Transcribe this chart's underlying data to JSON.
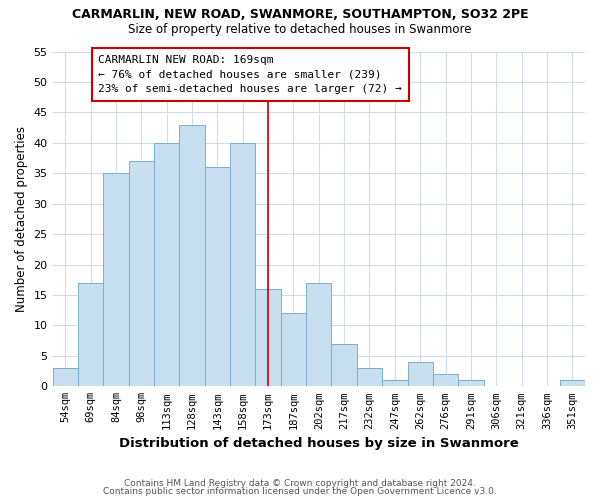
{
  "title1": "CARMARLIN, NEW ROAD, SWANMORE, SOUTHAMPTON, SO32 2PE",
  "title2": "Size of property relative to detached houses in Swanmore",
  "xlabel": "Distribution of detached houses by size in Swanmore",
  "ylabel": "Number of detached properties",
  "bin_labels": [
    "54sqm",
    "69sqm",
    "84sqm",
    "98sqm",
    "113sqm",
    "128sqm",
    "143sqm",
    "158sqm",
    "173sqm",
    "187sqm",
    "202sqm",
    "217sqm",
    "232sqm",
    "247sqm",
    "262sqm",
    "276sqm",
    "291sqm",
    "306sqm",
    "321sqm",
    "336sqm",
    "351sqm"
  ],
  "bar_values": [
    3,
    17,
    35,
    37,
    40,
    43,
    36,
    40,
    16,
    12,
    17,
    7,
    3,
    1,
    4,
    2,
    1,
    0,
    0,
    0,
    1
  ],
  "bar_color": "#c8dff0",
  "bar_edge_color": "#7ab0d0",
  "vline_x_index": 8,
  "vline_color": "#cc0000",
  "annotation_title": "CARMARLIN NEW ROAD: 169sqm",
  "annotation_line1": "← 76% of detached houses are smaller (239)",
  "annotation_line2": "23% of semi-detached houses are larger (72) →",
  "annotation_box_color": "#ffffff",
  "annotation_box_edge_color": "#cc0000",
  "ylim": [
    0,
    55
  ],
  "yticks": [
    0,
    5,
    10,
    15,
    20,
    25,
    30,
    35,
    40,
    45,
    50,
    55
  ],
  "footer1": "Contains HM Land Registry data © Crown copyright and database right 2024.",
  "footer2": "Contains public sector information licensed under the Open Government Licence v3.0.",
  "bg_color": "#ffffff",
  "grid_color": "#d0dce8"
}
